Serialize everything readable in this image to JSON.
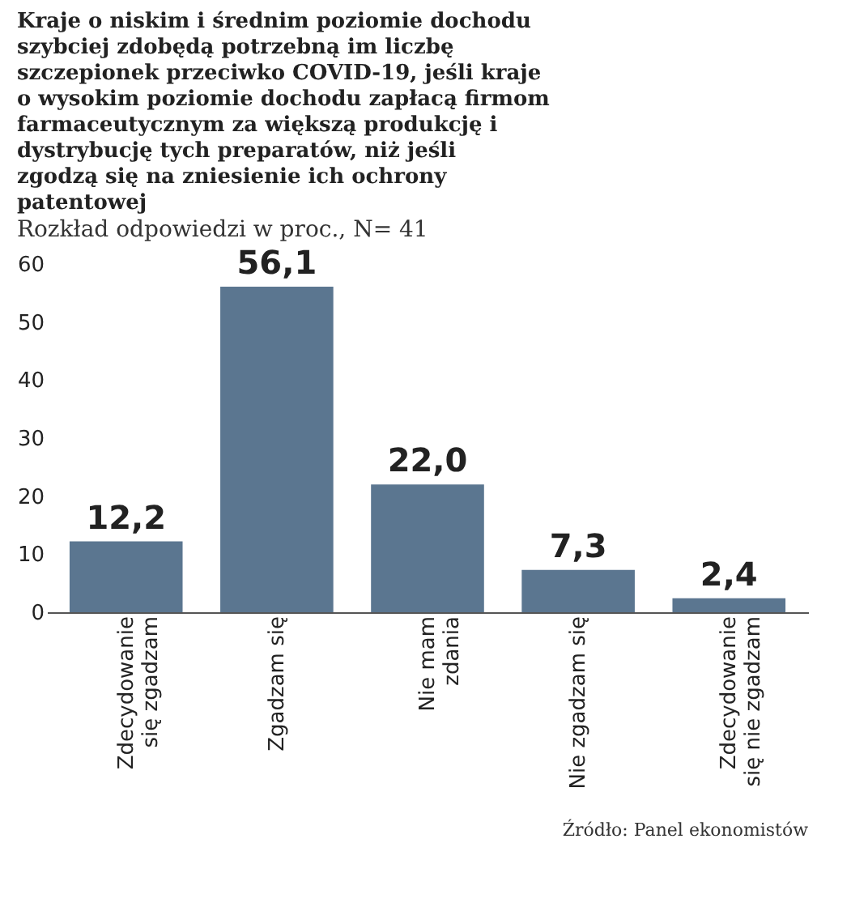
{
  "chart_data": {
    "type": "bar",
    "title": "Kraje o niskim i średnim poziomie dochodu szybciej zdobędą potrzebną im liczbę szczepionek przeciwko COVID-19, jeśli kraje o wysokim poziomie dochodu zapłacą firmom farmaceutycznym za większą produkcję i dystrybucję tych preparatów, niż jeśli zgodzą się na zniesienie ich ochrony patentowej",
    "subtitle": "Rozkład odpowiedzi w proc., N= 41",
    "categories": [
      "Zdecydowanie\nsię zgadzam",
      "Zgadzam się",
      "Nie mam\nzdania",
      "Nie zgadzam się",
      "Zdecydowanie\nsię nie zgadzam"
    ],
    "values": [
      12.2,
      56.1,
      22.0,
      7.3,
      2.4
    ],
    "color": "#5b7690",
    "ylim": [
      0,
      60
    ],
    "yticks": [
      0,
      10,
      20,
      30,
      40,
      50,
      60
    ],
    "value_labels": [
      "12,2",
      "56,1",
      "22,0",
      "7,3",
      "2,4"
    ],
    "grid": false,
    "annotations": [
      "Źródło: Panel ekonomistów"
    ]
  }
}
